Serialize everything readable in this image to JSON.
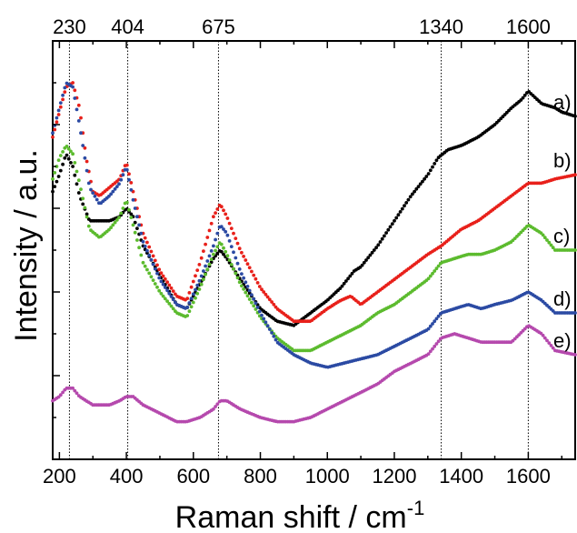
{
  "chart_data": {
    "type": "scatter",
    "xlabel": "Raman shift / cm",
    "xlabel_sup": "-1",
    "ylabel": "Intensity / a.u.",
    "xlim": [
      180,
      1740
    ],
    "ylim": [
      0,
      100
    ],
    "xticks": [
      200,
      400,
      600,
      800,
      1000,
      1200,
      1400,
      1600
    ],
    "y_ticks_labeled": false,
    "grid": false,
    "reference_lines": [
      {
        "x": 230,
        "label": "230"
      },
      {
        "x": 404,
        "label": "404"
      },
      {
        "x": 675,
        "label": "675"
      },
      {
        "x": 1340,
        "label": "1340"
      },
      {
        "x": 1600,
        "label": "1600"
      }
    ],
    "series": [
      {
        "name": "a)",
        "color": "#000000",
        "points": [
          [
            180,
            64
          ],
          [
            200,
            68
          ],
          [
            220,
            73
          ],
          [
            240,
            70
          ],
          [
            260,
            63
          ],
          [
            290,
            57
          ],
          [
            320,
            57
          ],
          [
            350,
            57
          ],
          [
            380,
            58
          ],
          [
            400,
            60
          ],
          [
            420,
            58
          ],
          [
            450,
            51
          ],
          [
            500,
            44
          ],
          [
            550,
            37
          ],
          [
            580,
            36
          ],
          [
            620,
            42
          ],
          [
            660,
            48
          ],
          [
            680,
            50
          ],
          [
            700,
            48
          ],
          [
            740,
            43
          ],
          [
            800,
            36
          ],
          [
            850,
            33
          ],
          [
            900,
            32
          ],
          [
            950,
            35
          ],
          [
            1000,
            38
          ],
          [
            1040,
            41
          ],
          [
            1080,
            45
          ],
          [
            1100,
            46
          ],
          [
            1150,
            51
          ],
          [
            1200,
            57
          ],
          [
            1250,
            63
          ],
          [
            1300,
            68
          ],
          [
            1330,
            72
          ],
          [
            1360,
            74
          ],
          [
            1400,
            75
          ],
          [
            1450,
            77
          ],
          [
            1500,
            80
          ],
          [
            1550,
            84
          ],
          [
            1580,
            86
          ],
          [
            1600,
            88
          ],
          [
            1640,
            85
          ],
          [
            1680,
            84
          ],
          [
            1700,
            83
          ],
          [
            1740,
            82
          ]
        ]
      },
      {
        "name": "b)",
        "color": "#e8201a",
        "points": [
          [
            180,
            77
          ],
          [
            200,
            83
          ],
          [
            220,
            89
          ],
          [
            240,
            90
          ],
          [
            260,
            84
          ],
          [
            280,
            72
          ],
          [
            300,
            64
          ],
          [
            320,
            63
          ],
          [
            350,
            65
          ],
          [
            380,
            67
          ],
          [
            400,
            71
          ],
          [
            420,
            64
          ],
          [
            450,
            54
          ],
          [
            500,
            45
          ],
          [
            550,
            39
          ],
          [
            580,
            38
          ],
          [
            620,
            47
          ],
          [
            660,
            58
          ],
          [
            680,
            61
          ],
          [
            700,
            58
          ],
          [
            740,
            50
          ],
          [
            800,
            41
          ],
          [
            850,
            36
          ],
          [
            900,
            33
          ],
          [
            950,
            33
          ],
          [
            1000,
            36
          ],
          [
            1040,
            38
          ],
          [
            1070,
            39
          ],
          [
            1100,
            37
          ],
          [
            1150,
            40
          ],
          [
            1200,
            43
          ],
          [
            1250,
            46
          ],
          [
            1300,
            49
          ],
          [
            1340,
            51
          ],
          [
            1400,
            55
          ],
          [
            1450,
            57
          ],
          [
            1500,
            60
          ],
          [
            1550,
            63
          ],
          [
            1600,
            66
          ],
          [
            1640,
            66
          ],
          [
            1680,
            67
          ],
          [
            1740,
            68
          ]
        ]
      },
      {
        "name": "c)",
        "color": "#5cbb2e",
        "points": [
          [
            180,
            67
          ],
          [
            200,
            72
          ],
          [
            220,
            75
          ],
          [
            240,
            73
          ],
          [
            260,
            66
          ],
          [
            290,
            55
          ],
          [
            320,
            53
          ],
          [
            350,
            55
          ],
          [
            380,
            58
          ],
          [
            400,
            62
          ],
          [
            420,
            56
          ],
          [
            450,
            47
          ],
          [
            500,
            40
          ],
          [
            550,
            35
          ],
          [
            580,
            34
          ],
          [
            620,
            41
          ],
          [
            660,
            49
          ],
          [
            680,
            52
          ],
          [
            700,
            49
          ],
          [
            740,
            42
          ],
          [
            800,
            34
          ],
          [
            850,
            29
          ],
          [
            900,
            26
          ],
          [
            950,
            26
          ],
          [
            1000,
            28
          ],
          [
            1050,
            30
          ],
          [
            1100,
            32
          ],
          [
            1150,
            35
          ],
          [
            1200,
            37
          ],
          [
            1250,
            40
          ],
          [
            1300,
            43
          ],
          [
            1340,
            47
          ],
          [
            1380,
            48
          ],
          [
            1420,
            49
          ],
          [
            1460,
            49
          ],
          [
            1500,
            50
          ],
          [
            1550,
            52
          ],
          [
            1600,
            56
          ],
          [
            1640,
            54
          ],
          [
            1680,
            50
          ],
          [
            1740,
            50
          ]
        ]
      },
      {
        "name": "d)",
        "color": "#2b4aa3",
        "points": [
          [
            180,
            78
          ],
          [
            200,
            84
          ],
          [
            220,
            90
          ],
          [
            240,
            89
          ],
          [
            260,
            80
          ],
          [
            290,
            65
          ],
          [
            320,
            61
          ],
          [
            350,
            63
          ],
          [
            380,
            66
          ],
          [
            400,
            70
          ],
          [
            420,
            62
          ],
          [
            450,
            52
          ],
          [
            500,
            43
          ],
          [
            550,
            37
          ],
          [
            580,
            36
          ],
          [
            620,
            43
          ],
          [
            660,
            51
          ],
          [
            680,
            56
          ],
          [
            700,
            54
          ],
          [
            740,
            45
          ],
          [
            800,
            35
          ],
          [
            850,
            28
          ],
          [
            900,
            25
          ],
          [
            950,
            23
          ],
          [
            1000,
            22
          ],
          [
            1050,
            23
          ],
          [
            1100,
            24
          ],
          [
            1150,
            25
          ],
          [
            1200,
            27
          ],
          [
            1250,
            29
          ],
          [
            1300,
            31
          ],
          [
            1340,
            35
          ],
          [
            1380,
            36
          ],
          [
            1420,
            37
          ],
          [
            1460,
            36
          ],
          [
            1500,
            37
          ],
          [
            1550,
            38
          ],
          [
            1600,
            40
          ],
          [
            1640,
            38
          ],
          [
            1680,
            35
          ],
          [
            1740,
            35
          ]
        ]
      },
      {
        "name": "e)",
        "color": "#b549ad",
        "points": [
          [
            180,
            14
          ],
          [
            200,
            15
          ],
          [
            220,
            17
          ],
          [
            240,
            17
          ],
          [
            260,
            15
          ],
          [
            300,
            13
          ],
          [
            350,
            13
          ],
          [
            380,
            14
          ],
          [
            400,
            15
          ],
          [
            420,
            15
          ],
          [
            450,
            13
          ],
          [
            500,
            11
          ],
          [
            550,
            9
          ],
          [
            580,
            9
          ],
          [
            620,
            10
          ],
          [
            660,
            12
          ],
          [
            680,
            14
          ],
          [
            700,
            14
          ],
          [
            740,
            12
          ],
          [
            800,
            10
          ],
          [
            850,
            9
          ],
          [
            900,
            9
          ],
          [
            950,
            10
          ],
          [
            1000,
            12
          ],
          [
            1050,
            14
          ],
          [
            1100,
            16
          ],
          [
            1150,
            18
          ],
          [
            1200,
            21
          ],
          [
            1250,
            23
          ],
          [
            1300,
            25
          ],
          [
            1340,
            29
          ],
          [
            1380,
            30
          ],
          [
            1420,
            29
          ],
          [
            1460,
            28
          ],
          [
            1500,
            28
          ],
          [
            1550,
            28
          ],
          [
            1600,
            32
          ],
          [
            1640,
            30
          ],
          [
            1680,
            26
          ],
          [
            1740,
            25
          ]
        ]
      }
    ]
  }
}
